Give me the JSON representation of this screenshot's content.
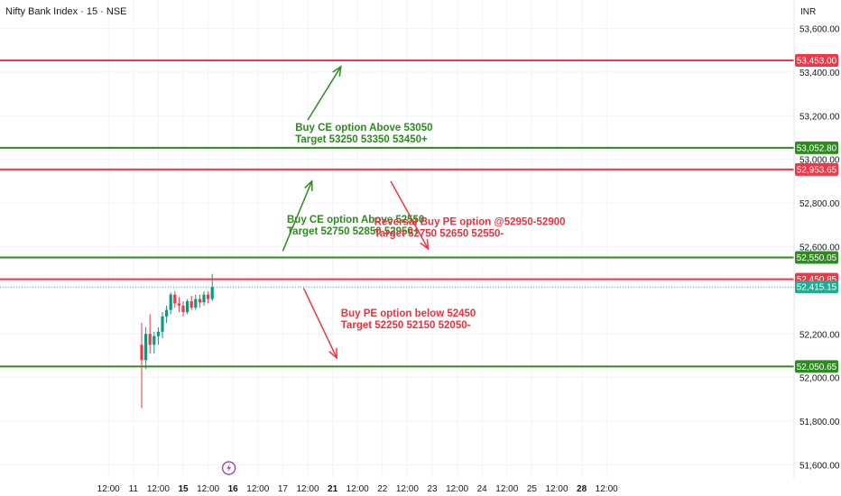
{
  "header": {
    "symbol_title": "Nifty Bank Index · 15 · NSE",
    "currency_label": "INR"
  },
  "colors": {
    "up": "#089981",
    "down": "#f23645",
    "green_line": "#2e8b1f",
    "red_line": "#f23645",
    "green_text": "#2e8b1f",
    "red_text": "#e8333f",
    "last_price": "#22ab94",
    "grid": "#f0f3fa",
    "axis_text": "#131722",
    "event_icon": "#9c27b0"
  },
  "chart_data": {
    "type": "candlestick",
    "title": "Nifty Bank Index · 15 · NSE",
    "y_unit": "INR",
    "ylim": [
      51540,
      53730
    ],
    "y_ticks": [
      {
        "value": 53600,
        "label": "53,600.00"
      },
      {
        "value": 53400,
        "label": "53,400.00"
      },
      {
        "value": 53200,
        "label": "53,200.00"
      },
      {
        "value": 53000,
        "label": "53,000.00"
      },
      {
        "value": 52800,
        "label": "52,800.00"
      },
      {
        "value": 52600,
        "label": "52,600.00"
      },
      {
        "value": 52200,
        "label": "52,200.00"
      },
      {
        "value": 52000,
        "label": "52,000.00"
      },
      {
        "value": 51800,
        "label": "51,800.00"
      },
      {
        "value": 51600,
        "label": "51,600.00"
      }
    ],
    "x_ticks": [
      {
        "label": "12:00",
        "bar": -8,
        "bold": false
      },
      {
        "label": "11",
        "bar": -2,
        "bold": false
      },
      {
        "label": "12:00",
        "bar": 4,
        "bold": false
      },
      {
        "label": "15",
        "bar": 10,
        "bold": true
      },
      {
        "label": "12:00",
        "bar": 16,
        "bold": false
      },
      {
        "label": "16",
        "bar": 22,
        "bold": true
      },
      {
        "label": "12:00",
        "bar": 28,
        "bold": false
      },
      {
        "label": "17",
        "bar": 34,
        "bold": false
      },
      {
        "label": "12:00",
        "bar": 40,
        "bold": false
      },
      {
        "label": "21",
        "bar": 46,
        "bold": true
      },
      {
        "label": "12:00",
        "bar": 52,
        "bold": false
      },
      {
        "label": "22",
        "bar": 58,
        "bold": false
      },
      {
        "label": "12:00",
        "bar": 64,
        "bold": false
      },
      {
        "label": "23",
        "bar": 70,
        "bold": false
      },
      {
        "label": "12:00",
        "bar": 76,
        "bold": false
      },
      {
        "label": "24",
        "bar": 82,
        "bold": false
      },
      {
        "label": "12:00",
        "bar": 88,
        "bold": false
      },
      {
        "label": "25",
        "bar": 94,
        "bold": false
      },
      {
        "label": "12:00",
        "bar": 100,
        "bold": false
      },
      {
        "label": "28",
        "bar": 106,
        "bold": true
      },
      {
        "label": "12:00",
        "bar": 112,
        "bold": false
      }
    ],
    "candles": [
      {
        "o": 52150,
        "h": 52250,
        "l": 51860,
        "c": 52080
      },
      {
        "o": 52080,
        "h": 52230,
        "l": 52040,
        "c": 52200
      },
      {
        "o": 52200,
        "h": 52290,
        "l": 52110,
        "c": 52150
      },
      {
        "o": 52150,
        "h": 52210,
        "l": 52110,
        "c": 52190
      },
      {
        "o": 52190,
        "h": 52230,
        "l": 52150,
        "c": 52210
      },
      {
        "o": 52210,
        "h": 52300,
        "l": 52180,
        "c": 52280
      },
      {
        "o": 52280,
        "h": 52330,
        "l": 52250,
        "c": 52310
      },
      {
        "o": 52310,
        "h": 52390,
        "l": 52290,
        "c": 52380
      },
      {
        "o": 52380,
        "h": 52395,
        "l": 52320,
        "c": 52340
      },
      {
        "o": 52340,
        "h": 52370,
        "l": 52300,
        "c": 52330
      },
      {
        "o": 52330,
        "h": 52350,
        "l": 52280,
        "c": 52300
      },
      {
        "o": 52300,
        "h": 52360,
        "l": 52290,
        "c": 52350
      },
      {
        "o": 52350,
        "h": 52375,
        "l": 52310,
        "c": 52320
      },
      {
        "o": 52320,
        "h": 52380,
        "l": 52310,
        "c": 52360
      },
      {
        "o": 52360,
        "h": 52380,
        "l": 52320,
        "c": 52345
      },
      {
        "o": 52345,
        "h": 52395,
        "l": 52330,
        "c": 52380
      },
      {
        "o": 52380,
        "h": 52395,
        "l": 52340,
        "c": 52360
      },
      {
        "o": 52360,
        "h": 52475,
        "l": 52350,
        "c": 52415
      }
    ],
    "levels": [
      {
        "value": 53453.0,
        "label": "53,453.00",
        "color": "red"
      },
      {
        "value": 53052.8,
        "label": "53,052.80",
        "color": "green"
      },
      {
        "value": 52953.65,
        "label": "52,953.65",
        "color": "red"
      },
      {
        "value": 52550.05,
        "label": "52,550.05",
        "color": "green"
      },
      {
        "value": 52450.85,
        "label": "52,450.85",
        "color": "red"
      },
      {
        "value": 52050.65,
        "label": "52,050.65",
        "color": "green"
      }
    ],
    "last_price": {
      "value": 52415.15,
      "label": "52,415.15"
    },
    "annotations": [
      {
        "lines": [
          "Buy CE option Above 53050",
          "Target 53250 53350 53450+"
        ],
        "color": "green",
        "bar": 37,
        "value": 53130
      },
      {
        "lines": [
          "Buy CE option Above 52550",
          "Target 52750 52850 52950+"
        ],
        "color": "green",
        "bar": 35,
        "value": 52710
      },
      {
        "lines": [
          "Reversal Buy PE option @52950-52900",
          "Target 52750 52650 52550-"
        ],
        "color": "red",
        "bar": 56,
        "value": 52700
      },
      {
        "lines": [
          "Buy PE option below 52450",
          "Target 52250 52150 52050-"
        ],
        "color": "red",
        "bar": 48,
        "value": 52280
      }
    ],
    "arrows": [
      {
        "color": "green",
        "from": {
          "bar": 40,
          "value": 53180
        },
        "to": {
          "bar": 48,
          "value": 53425
        }
      },
      {
        "color": "green",
        "from": {
          "bar": 34,
          "value": 52580
        },
        "to": {
          "bar": 41,
          "value": 52900
        }
      },
      {
        "color": "red",
        "from": {
          "bar": 60,
          "value": 52900
        },
        "to": {
          "bar": 69,
          "value": 52590
        }
      },
      {
        "color": "red",
        "from": {
          "bar": 39,
          "value": 52410
        },
        "to": {
          "bar": 47,
          "value": 52090
        }
      }
    ],
    "event_marker": {
      "bar": 21
    }
  }
}
